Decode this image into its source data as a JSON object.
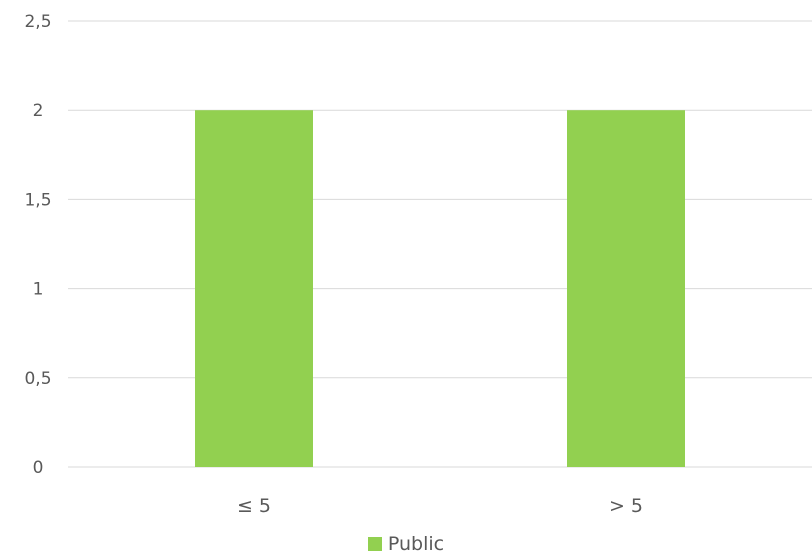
{
  "chart_data": {
    "type": "bar",
    "title": "",
    "xlabel": "",
    "ylabel": "",
    "categories": [
      "≤ 5",
      "> 5"
    ],
    "series": [
      {
        "name": "Public",
        "values": [
          2,
          2
        ],
        "color": "#92d050"
      }
    ],
    "ylim": [
      0,
      2.5
    ],
    "yticks": [
      "0",
      "0,5",
      "1",
      "1,5",
      "2",
      "2,5"
    ],
    "grid": true,
    "legend_position": "bottom"
  }
}
